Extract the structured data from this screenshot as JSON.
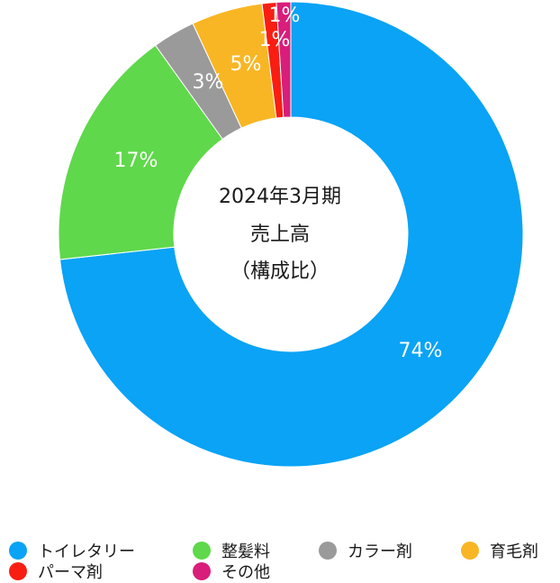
{
  "chart_data": {
    "type": "pie",
    "variant": "donut",
    "center_lines": [
      "2024年3月期",
      "売上高",
      "（構成比）"
    ],
    "slices": [
      {
        "name": "トイレタリー",
        "value": 74,
        "label": "74%",
        "color": "#0aa3f5"
      },
      {
        "name": "整髪料",
        "value": 17,
        "label": "17%",
        "color": "#5fd84b"
      },
      {
        "name": "カラー剤",
        "value": 3,
        "label": "3%",
        "color": "#9a9a9a"
      },
      {
        "name": "育毛剤",
        "value": 5,
        "label": "5%",
        "color": "#f8b624"
      },
      {
        "name": "パーマ剤",
        "value": 1,
        "label": "1%",
        "color": "#f91e12"
      },
      {
        "name": "その他",
        "value": 1,
        "label": "1%",
        "color": "#d81e7a"
      }
    ],
    "legend_position": "bottom"
  }
}
